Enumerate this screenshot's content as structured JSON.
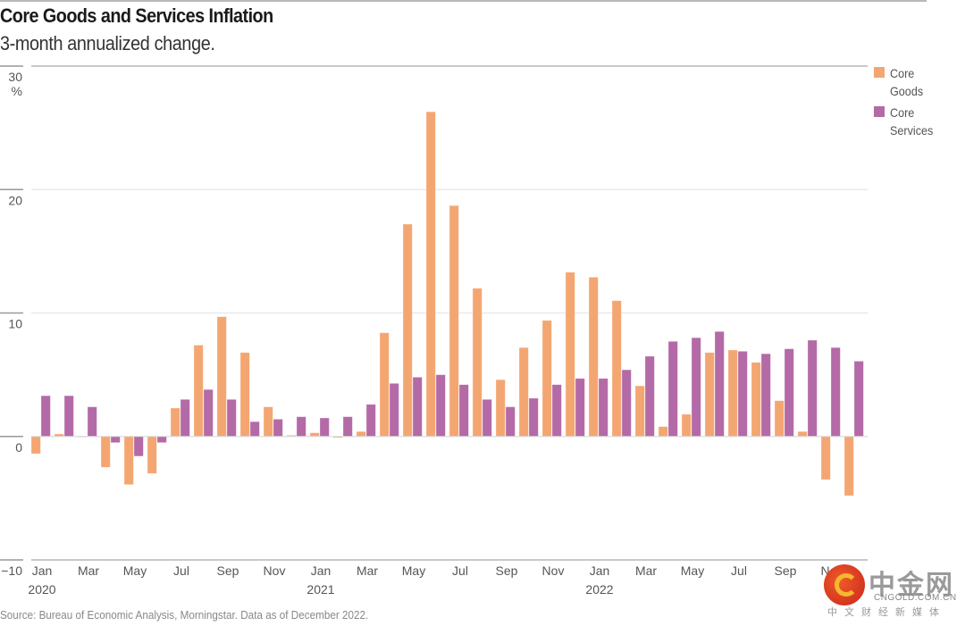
{
  "chart_data": {
    "type": "bar",
    "title": "Core Goods and Services Inflation",
    "subtitle": "3-month annualized change.",
    "xlabel": "",
    "ylabel": "%",
    "ylim": [
      -10,
      30
    ],
    "yticks": [
      30,
      20,
      10,
      0,
      -10
    ],
    "ytick_labels": [
      "30",
      "20",
      "10",
      "0",
      "−10"
    ],
    "y_unit_label": "%",
    "grid": true,
    "legend_position": "top-right",
    "categories": [
      "Jan 2020",
      "Feb 2020",
      "Mar 2020",
      "Apr 2020",
      "May 2020",
      "Jun 2020",
      "Jul 2020",
      "Aug 2020",
      "Sep 2020",
      "Oct 2020",
      "Nov 2020",
      "Dec 2020",
      "Jan 2021",
      "Feb 2021",
      "Mar 2021",
      "Apr 2021",
      "May 2021",
      "Jun 2021",
      "Jul 2021",
      "Aug 2021",
      "Sep 2021",
      "Oct 2021",
      "Nov 2021",
      "Dec 2021",
      "Jan 2022",
      "Feb 2022",
      "Mar 2022",
      "Apr 2022",
      "May 2022",
      "Jun 2022",
      "Jul 2022",
      "Aug 2022",
      "Sep 2022",
      "Oct 2022",
      "Nov 2022",
      "Dec 2022"
    ],
    "xtick_labels": [
      {
        "index": 0,
        "label": "Jan",
        "year": "2020"
      },
      {
        "index": 2,
        "label": "Mar",
        "year": ""
      },
      {
        "index": 4,
        "label": "May",
        "year": ""
      },
      {
        "index": 6,
        "label": "Jul",
        "year": ""
      },
      {
        "index": 8,
        "label": "Sep",
        "year": ""
      },
      {
        "index": 10,
        "label": "Nov",
        "year": ""
      },
      {
        "index": 12,
        "label": "Jan",
        "year": "2021"
      },
      {
        "index": 14,
        "label": "Mar",
        "year": ""
      },
      {
        "index": 16,
        "label": "May",
        "year": ""
      },
      {
        "index": 18,
        "label": "Jul",
        "year": ""
      },
      {
        "index": 20,
        "label": "Sep",
        "year": ""
      },
      {
        "index": 22,
        "label": "Nov",
        "year": ""
      },
      {
        "index": 24,
        "label": "Jan",
        "year": "2022"
      },
      {
        "index": 26,
        "label": "Mar",
        "year": ""
      },
      {
        "index": 28,
        "label": "May",
        "year": ""
      },
      {
        "index": 30,
        "label": "Jul",
        "year": ""
      },
      {
        "index": 32,
        "label": "Sep",
        "year": ""
      },
      {
        "index": 34,
        "label": "Nov",
        "year": ""
      }
    ],
    "series": [
      {
        "name": "Core Goods",
        "color": "#f4a672",
        "values": [
          -1.4,
          0.2,
          0.0,
          -2.5,
          -3.9,
          -3.0,
          2.3,
          7.4,
          9.7,
          6.8,
          2.4,
          0.1,
          0.3,
          -0.1,
          0.4,
          8.4,
          17.2,
          26.3,
          18.7,
          12.0,
          4.6,
          7.2,
          9.4,
          13.3,
          12.9,
          11.0,
          4.1,
          0.8,
          1.8,
          6.8,
          7.0,
          6.0,
          2.9,
          0.4,
          -3.5,
          -4.8
        ]
      },
      {
        "name": "Core Services",
        "color": "#b46aa6",
        "values": [
          3.3,
          3.3,
          2.4,
          -0.5,
          -1.6,
          -0.5,
          3.0,
          3.8,
          3.0,
          1.2,
          1.4,
          1.6,
          1.5,
          1.6,
          2.6,
          4.3,
          4.8,
          5.0,
          4.2,
          3.0,
          2.4,
          3.1,
          4.2,
          4.7,
          4.7,
          5.4,
          6.5,
          7.7,
          8.0,
          8.5,
          6.9,
          6.7,
          7.1,
          7.8,
          7.2,
          6.1
        ]
      }
    ]
  },
  "legend": {
    "items": [
      {
        "label": "Core Goods",
        "color": "#f4a672"
      },
      {
        "label": "Core Services",
        "color": "#b46aa6"
      }
    ]
  },
  "source": "Source: Bureau of Economic Analysis, Morningstar. Data as of December 2022.",
  "watermark": {
    "brand_cn": "中金网",
    "brand_en": "CNGOLD.COM.CN",
    "tagline": "中文财经新媒体"
  }
}
